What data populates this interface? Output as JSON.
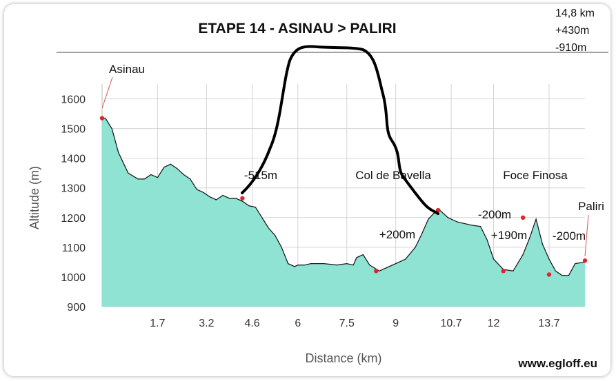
{
  "chart_data": {
    "type": "area",
    "title": "ETAPE 14 - ASINAU > PALIRI",
    "stats": [
      "14,8 km",
      "+430m",
      "-910m"
    ],
    "xlabel": "Distance (km)",
    "ylabel": "Altitude (m)",
    "x_ticks": [
      "1.7",
      "3.2",
      "4.6",
      "6",
      "7.5",
      "9",
      "10.7",
      "12",
      "13.7"
    ],
    "y_ticks": [
      "900",
      "1000",
      "1100",
      "1200",
      "1300",
      "1400",
      "1500",
      "1600"
    ],
    "xlim": [
      0,
      14.8
    ],
    "ylim": [
      900,
      1650
    ],
    "grid": true,
    "fill_color": "#8ee3d2",
    "line_color": "#1c1c1c",
    "marker_color": "#e0252a",
    "series": [
      {
        "x": [
          0,
          0.1,
          0.3,
          0.5,
          0.8,
          1.1,
          1.3,
          1.5,
          1.7,
          1.9,
          2.1,
          2.3,
          2.5,
          2.7,
          2.9,
          3.1,
          3.3,
          3.5,
          3.7,
          3.9,
          4.1,
          4.3,
          4.5,
          4.7,
          4.9,
          5.1,
          5.3,
          5.5,
          5.7,
          5.9,
          6.0,
          6.2,
          6.4,
          6.8,
          7.2,
          7.5,
          7.7,
          7.8,
          8.0,
          8.2,
          8.5,
          8.7,
          9.0,
          9.3,
          9.6,
          9.8,
          10.0,
          10.3,
          10.6,
          10.9,
          11.1,
          11.3,
          11.6,
          11.8,
          12.0,
          12.3,
          12.6,
          12.9,
          13.1,
          13.3,
          13.5,
          13.7,
          13.9,
          14.1,
          14.3,
          14.5,
          14.8
        ],
        "y": [
          1535,
          1535,
          1500,
          1420,
          1350,
          1330,
          1330,
          1345,
          1335,
          1370,
          1380,
          1365,
          1345,
          1330,
          1295,
          1285,
          1270,
          1260,
          1275,
          1265,
          1265,
          1255,
          1240,
          1235,
          1200,
          1165,
          1140,
          1100,
          1045,
          1035,
          1040,
          1040,
          1045,
          1045,
          1040,
          1045,
          1040,
          1065,
          1075,
          1040,
          1020,
          1030,
          1045,
          1060,
          1100,
          1145,
          1195,
          1230,
          1200,
          1185,
          1180,
          1175,
          1170,
          1125,
          1060,
          1025,
          1020,
          1075,
          1130,
          1195,
          1110,
          1060,
          1020,
          1005,
          1005,
          1045,
          1050
        ]
      }
    ],
    "markers": [
      {
        "label": "Asinau",
        "x": 0.0,
        "y": 1535
      },
      {
        "label": "",
        "x": 4.3,
        "y": 1265
      },
      {
        "label": "",
        "x": 8.4,
        "y": 1020
      },
      {
        "label": "Col de Bavella",
        "x": 10.3,
        "y": 1225
      },
      {
        "label": "",
        "x": 12.3,
        "y": 1020
      },
      {
        "label": "Foce Finosa",
        "x": 12.9,
        "y": 1200
      },
      {
        "label": "",
        "x": 13.7,
        "y": 1008
      },
      {
        "label": "Paliri",
        "x": 14.8,
        "y": 1055
      }
    ],
    "annotations": [
      "-515m",
      "+200m",
      "-200m",
      "+190m",
      "-200m"
    ]
  },
  "credit": "www.egloff.eu"
}
